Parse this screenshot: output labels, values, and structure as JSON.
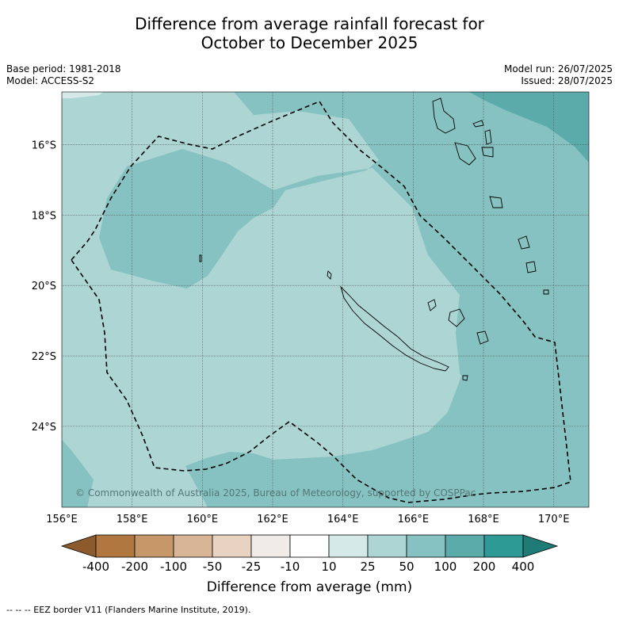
{
  "title_line1": "Difference from average rainfall forecast for",
  "title_line2": "October to December 2025",
  "base_period": "Base period: 1981-2018",
  "model": "Model: ACCESS-S2",
  "model_run": "Model run: 26/07/2025",
  "issued": "Issued: 28/07/2025",
  "copyright": "© Commonwealth of Australia 2025, Bureau of Meteorology, supported by COSPPac",
  "map": {
    "lon_ticks": [
      "156°E",
      "158°E",
      "160°E",
      "162°E",
      "164°E",
      "166°E",
      "168°E",
      "170°E"
    ],
    "lat_ticks": [
      "16°S",
      "18°S",
      "20°S",
      "22°S",
      "24°S"
    ],
    "lon_range": [
      156,
      171
    ],
    "lat_range": [
      -14.5,
      -26.3
    ],
    "colors": {
      "c10_25": "#d5eae8",
      "c25_50": "#acd5d4",
      "c50_100": "#86c2c1",
      "c100_200": "#5babab",
      "c200_400": "#2e9a96"
    }
  },
  "colorbar": {
    "labels": [
      "-400",
      "-200",
      "-100",
      "-50",
      "-25",
      "-10",
      "10",
      "25",
      "50",
      "100",
      "200",
      "400"
    ],
    "colors": [
      "#8c5a2b",
      "#b07840",
      "#c59769",
      "#d8b596",
      "#e8d3c1",
      "#f1ebe7",
      "#ffffff",
      "#d5eae8",
      "#acd5d4",
      "#86c2c1",
      "#5babab",
      "#2e9a96",
      "#1e7b76"
    ],
    "title": "Difference from average (mm)"
  },
  "footer": "--  --  -- EEZ border V11 (Flanders Marine Institute, 2019)."
}
